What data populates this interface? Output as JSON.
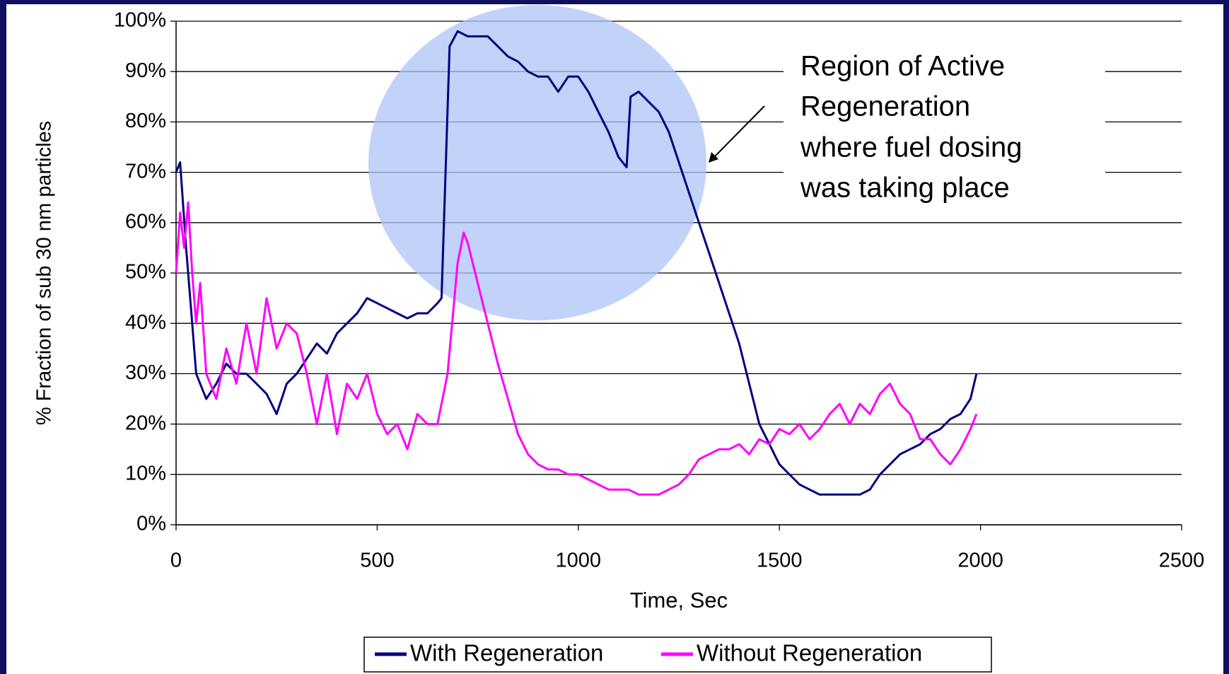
{
  "chart_data": {
    "type": "line",
    "xlabel": "Time, Sec",
    "ylabel": "% Fraction of sub 30 nm particles",
    "annotation": [
      "Region of Active",
      "Regeneration",
      "where fuel dosing",
      "was taking place"
    ],
    "xlim": [
      0,
      2500
    ],
    "xticks": [
      0,
      500,
      1000,
      1500,
      2000,
      2500
    ],
    "ylim": [
      0,
      100
    ],
    "yticks": [
      {
        "value": 0,
        "label": "0%"
      },
      {
        "value": 10,
        "label": "10%"
      },
      {
        "value": 20,
        "label": "20%"
      },
      {
        "value": 30,
        "label": "30%"
      },
      {
        "value": 40,
        "label": "40%"
      },
      {
        "value": 50,
        "label": "50%"
      },
      {
        "value": 60,
        "label": "60%"
      },
      {
        "value": 70,
        "label": "70%"
      },
      {
        "value": 80,
        "label": "80%"
      },
      {
        "value": 90,
        "label": "90%"
      },
      {
        "value": 100,
        "label": "100%"
      }
    ],
    "grid": true,
    "legend": "bottom",
    "series": [
      {
        "name": "With Regeneration",
        "color": "#000080",
        "x": [
          0,
          10,
          25,
          40,
          50,
          75,
          100,
          125,
          150,
          175,
          200,
          225,
          250,
          275,
          300,
          325,
          350,
          375,
          400,
          425,
          450,
          475,
          500,
          525,
          550,
          575,
          600,
          625,
          650,
          660,
          670,
          680,
          700,
          725,
          750,
          775,
          800,
          825,
          850,
          875,
          900,
          925,
          950,
          975,
          1000,
          1025,
          1050,
          1075,
          1100,
          1120,
          1130,
          1150,
          1175,
          1200,
          1225,
          1250,
          1275,
          1300,
          1325,
          1350,
          1375,
          1400,
          1425,
          1450,
          1475,
          1500,
          1525,
          1550,
          1575,
          1600,
          1625,
          1650,
          1675,
          1700,
          1725,
          1750,
          1775,
          1800,
          1825,
          1850,
          1875,
          1900,
          1925,
          1950,
          1975,
          1990
        ],
        "values": [
          70,
          72,
          55,
          40,
          30,
          25,
          28,
          32,
          30,
          30,
          28,
          26,
          22,
          28,
          30,
          33,
          36,
          34,
          38,
          40,
          42,
          45,
          44,
          43,
          42,
          41,
          42,
          42,
          44,
          45,
          70,
          95,
          98,
          97,
          97,
          97,
          95,
          93,
          92,
          90,
          89,
          89,
          86,
          89,
          89,
          86,
          82,
          78,
          73,
          71,
          85,
          86,
          84,
          82,
          78,
          72,
          66,
          60,
          54,
          48,
          42,
          36,
          28,
          20,
          16,
          12,
          10,
          8,
          7,
          6,
          6,
          6,
          6,
          6,
          7,
          10,
          12,
          14,
          15,
          16,
          18,
          19,
          21,
          22,
          25,
          30
        ]
      },
      {
        "name": "Without Regeneration",
        "color": "#ff00ff",
        "x": [
          0,
          10,
          20,
          30,
          40,
          50,
          60,
          75,
          100,
          125,
          150,
          175,
          200,
          225,
          250,
          275,
          300,
          325,
          350,
          375,
          400,
          425,
          450,
          475,
          500,
          525,
          550,
          575,
          600,
          625,
          650,
          675,
          700,
          715,
          725,
          750,
          775,
          800,
          825,
          850,
          875,
          900,
          925,
          950,
          975,
          1000,
          1025,
          1050,
          1075,
          1100,
          1125,
          1150,
          1175,
          1200,
          1225,
          1250,
          1275,
          1300,
          1325,
          1350,
          1375,
          1400,
          1425,
          1450,
          1475,
          1500,
          1525,
          1550,
          1575,
          1600,
          1625,
          1650,
          1675,
          1700,
          1725,
          1750,
          1775,
          1800,
          1825,
          1850,
          1875,
          1900,
          1925,
          1950,
          1975,
          1990
        ],
        "values": [
          50,
          62,
          55,
          64,
          50,
          40,
          48,
          30,
          25,
          35,
          28,
          40,
          30,
          45,
          35,
          40,
          38,
          30,
          20,
          30,
          18,
          28,
          25,
          30,
          22,
          18,
          20,
          15,
          22,
          20,
          20,
          30,
          52,
          58,
          56,
          48,
          40,
          32,
          25,
          18,
          14,
          12,
          11,
          11,
          10,
          10,
          9,
          8,
          7,
          7,
          7,
          6,
          6,
          6,
          7,
          8,
          10,
          13,
          14,
          15,
          15,
          16,
          14,
          17,
          16,
          19,
          18,
          20,
          17,
          19,
          22,
          24,
          20,
          24,
          22,
          26,
          28,
          24,
          22,
          17,
          17,
          14,
          12,
          15,
          19,
          22
        ]
      }
    ]
  }
}
